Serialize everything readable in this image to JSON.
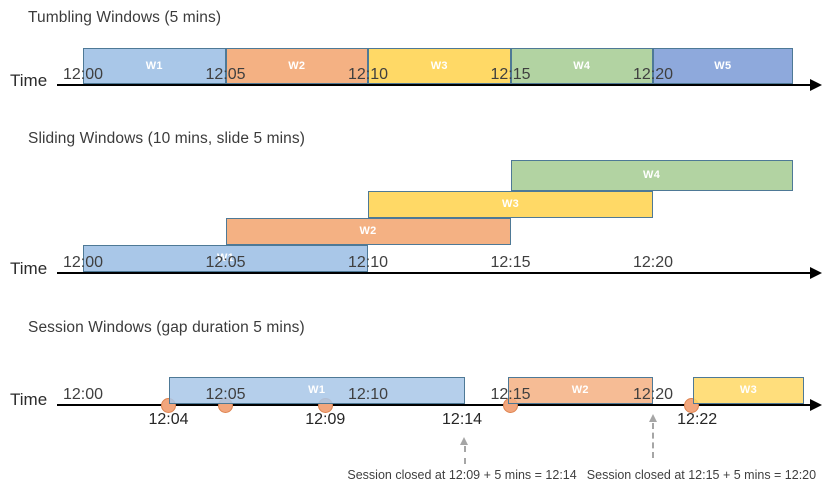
{
  "colors": {
    "blue": "#A9C7E8",
    "orange": "#F4B183",
    "yellow": "#FFD966",
    "green": "#B2D3A2",
    "periwinkle": "#8EA9DC",
    "bar_border": "#4E7996",
    "axis": "#000000",
    "dot_fill": "#F2A67D",
    "dot_border": "#DE8450",
    "dashed_arrow": "#A6A6A6",
    "text": "#3F3F3F"
  },
  "sections": {
    "tumbling": {
      "title": "Tumbling Windows (5 mins)",
      "time_label": "Time",
      "ticks": [
        {
          "label": "12:00",
          "min": 0
        },
        {
          "label": "12:05",
          "min": 5
        },
        {
          "label": "12:10",
          "min": 10
        },
        {
          "label": "12:15",
          "min": 15
        },
        {
          "label": "12:20",
          "min": 20
        }
      ],
      "windows": [
        {
          "label": "W1",
          "start_min": 0,
          "end_min": 5,
          "color": "blue"
        },
        {
          "label": "W2",
          "start_min": 5,
          "end_min": 10,
          "color": "orange"
        },
        {
          "label": "W3",
          "start_min": 10,
          "end_min": 15,
          "color": "yellow"
        },
        {
          "label": "W4",
          "start_min": 15,
          "end_min": 20,
          "color": "green"
        },
        {
          "label": "W5",
          "start_min": 20,
          "end_min": 24.9,
          "color": "periwinkle"
        }
      ]
    },
    "sliding": {
      "title": "Sliding Windows (10 mins, slide 5 mins)",
      "time_label": "Time",
      "ticks": [
        {
          "label": "12:00",
          "min": 0
        },
        {
          "label": "12:05",
          "min": 5
        },
        {
          "label": "12:10",
          "min": 10
        },
        {
          "label": "12:15",
          "min": 15
        },
        {
          "label": "12:20",
          "min": 20
        }
      ],
      "windows": [
        {
          "label": "W1",
          "start_min": 0,
          "end_min": 10,
          "lane": 0,
          "color": "blue"
        },
        {
          "label": "W2",
          "start_min": 5,
          "end_min": 15,
          "lane": 1,
          "color": "orange"
        },
        {
          "label": "W3",
          "start_min": 10,
          "end_min": 20,
          "lane": 2,
          "color": "yellow"
        },
        {
          "label": "W4",
          "start_min": 15,
          "end_min": 24.9,
          "lane": 3,
          "color": "green"
        }
      ]
    },
    "session": {
      "title": "Session Windows (gap duration 5 mins)",
      "time_label": "Time",
      "ticks": [
        {
          "label": "12:00",
          "min": 0
        },
        {
          "label": "12:05",
          "min": 5
        },
        {
          "label": "12:10",
          "min": 10
        },
        {
          "label": "12:15",
          "min": 15
        },
        {
          "label": "12:20",
          "min": 20
        }
      ],
      "windows": [
        {
          "label": "W1",
          "start_min": 3,
          "end_min": 13.4,
          "color": "blue"
        },
        {
          "label": "W2",
          "start_min": 14.9,
          "end_min": 20,
          "color": "orange"
        },
        {
          "label": "W3",
          "start_min": 21.4,
          "end_min": 25.3,
          "color": "yellow"
        }
      ],
      "events": [
        {
          "min": 3
        },
        {
          "min": 5
        },
        {
          "min": 8.5
        },
        {
          "min": 15
        },
        {
          "min": 21.35
        }
      ],
      "below_labels": [
        {
          "label": "12:04",
          "min": 3
        },
        {
          "label": "12:09",
          "min": 8.5
        },
        {
          "label": "12:14",
          "min": 13.3
        },
        {
          "label": "12:22",
          "min": 21.55
        }
      ],
      "annotations": [
        {
          "text": "Session closed at 12:09 + 5 mins = 12:14",
          "text_center_min": 13.3,
          "arrow_min": 13.4,
          "arrow_variant": "short"
        },
        {
          "text": "Session closed at 12:15 + 5 mins = 12:20",
          "text_center_min": 21.7,
          "arrow_min": 20,
          "arrow_variant": "long"
        }
      ]
    }
  }
}
